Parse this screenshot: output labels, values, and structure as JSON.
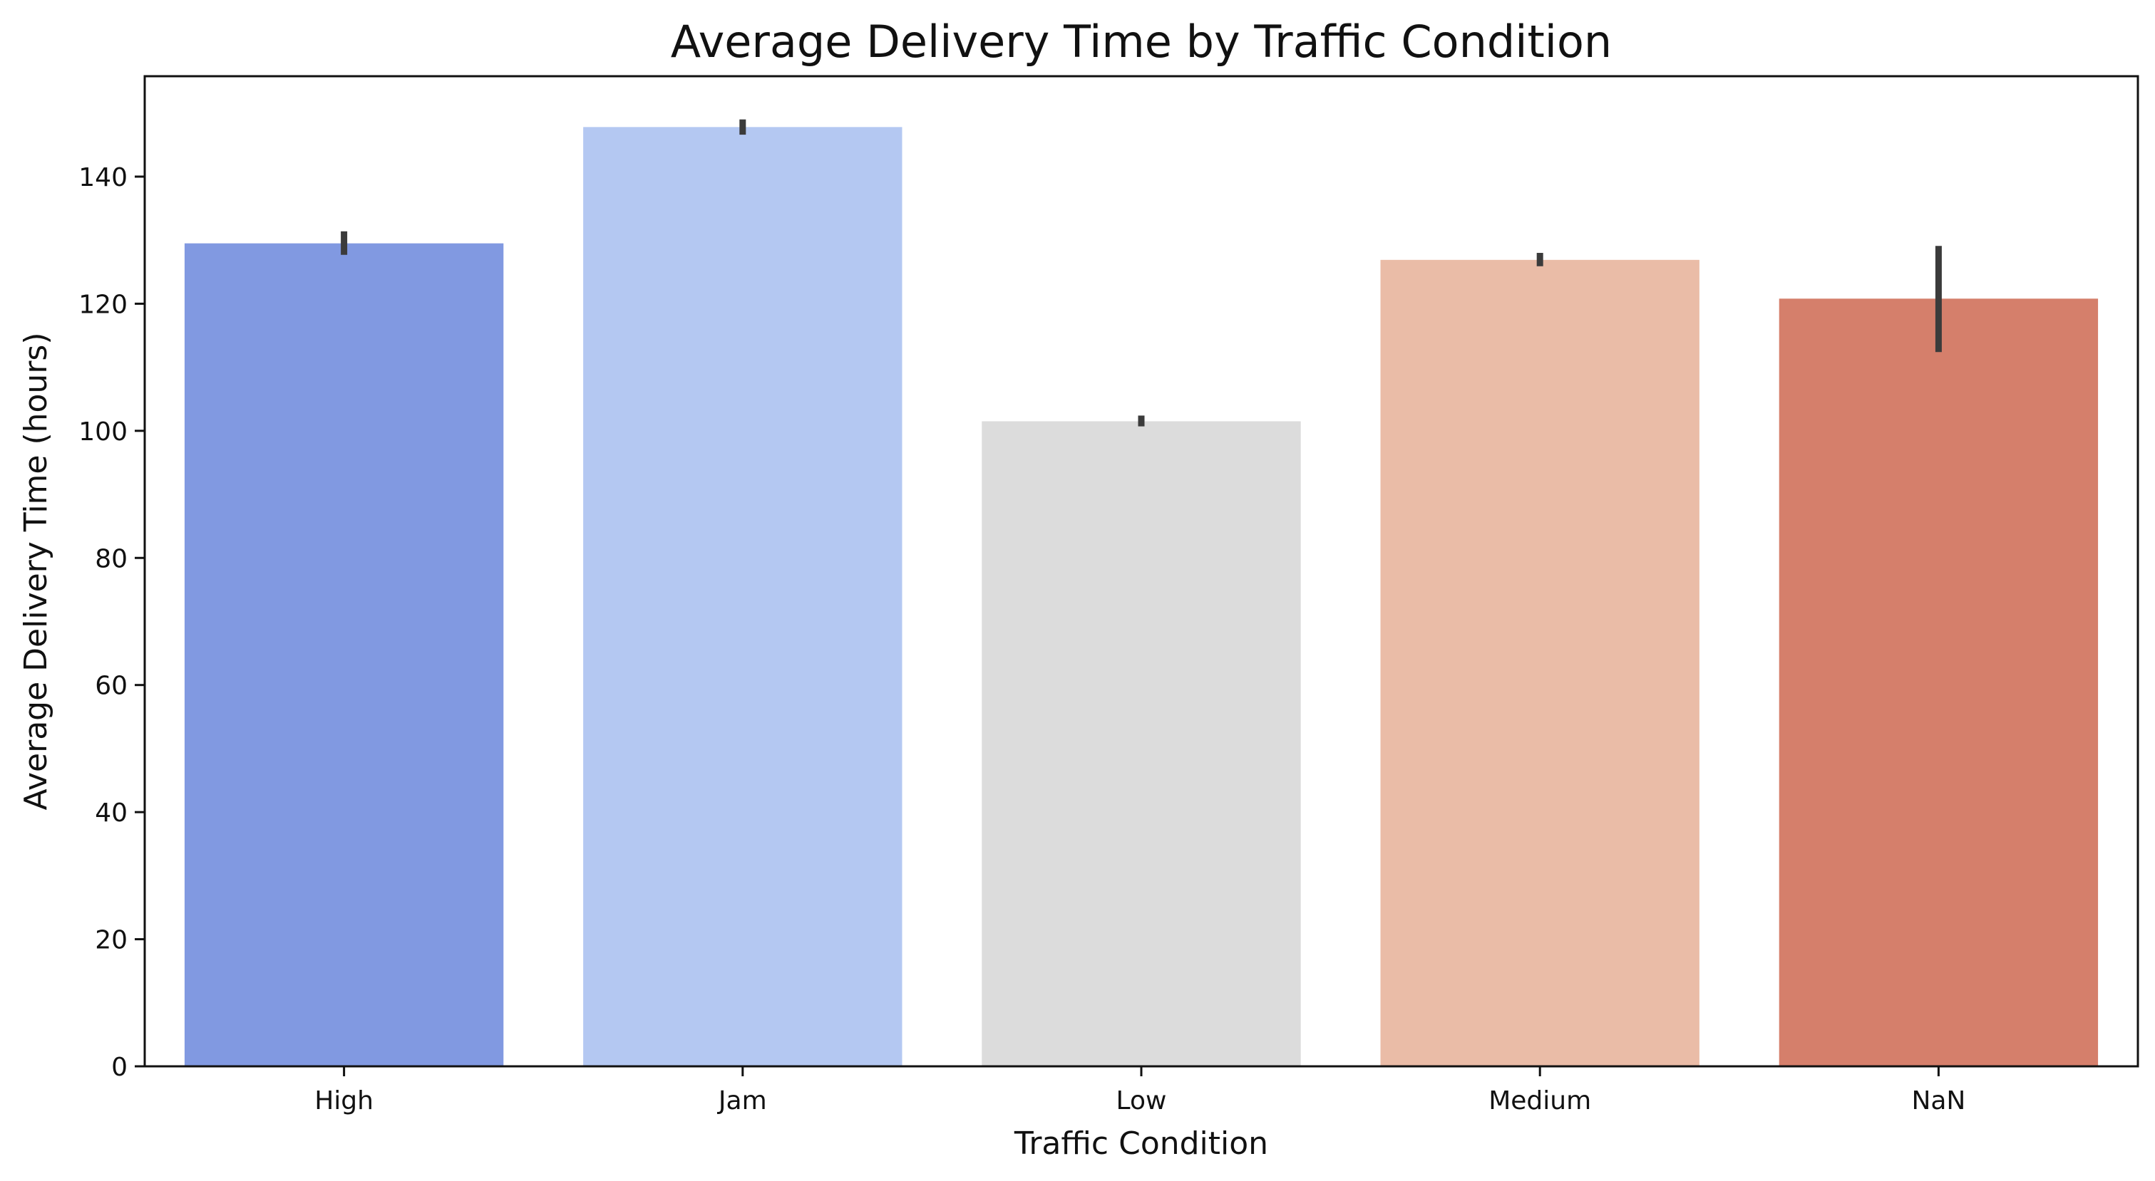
{
  "chart_data": {
    "type": "bar",
    "title": "Average Delivery Time by Traffic Condition",
    "xlabel": "Traffic Condition",
    "ylabel": "Average Delivery Time (hours)",
    "categories": [
      "High",
      "Jam",
      "Low",
      "Medium",
      "NaN"
    ],
    "values": [
      129.5,
      147.8,
      101.5,
      126.9,
      120.8
    ],
    "error_bars": [
      [
        127.7,
        131.4
      ],
      [
        146.6,
        149.0
      ],
      [
        100.7,
        102.4
      ],
      [
        125.9,
        128.0
      ],
      [
        112.4,
        129.1
      ]
    ],
    "colors": [
      "#8199e1",
      "#b4c8f2",
      "#dcdcdc",
      "#eabca7",
      "#d57f6b"
    ],
    "ylim": [
      0,
      155.8
    ],
    "yticks": [
      0,
      20,
      40,
      60,
      80,
      100,
      120,
      140
    ],
    "grid": false,
    "legend": "none"
  }
}
